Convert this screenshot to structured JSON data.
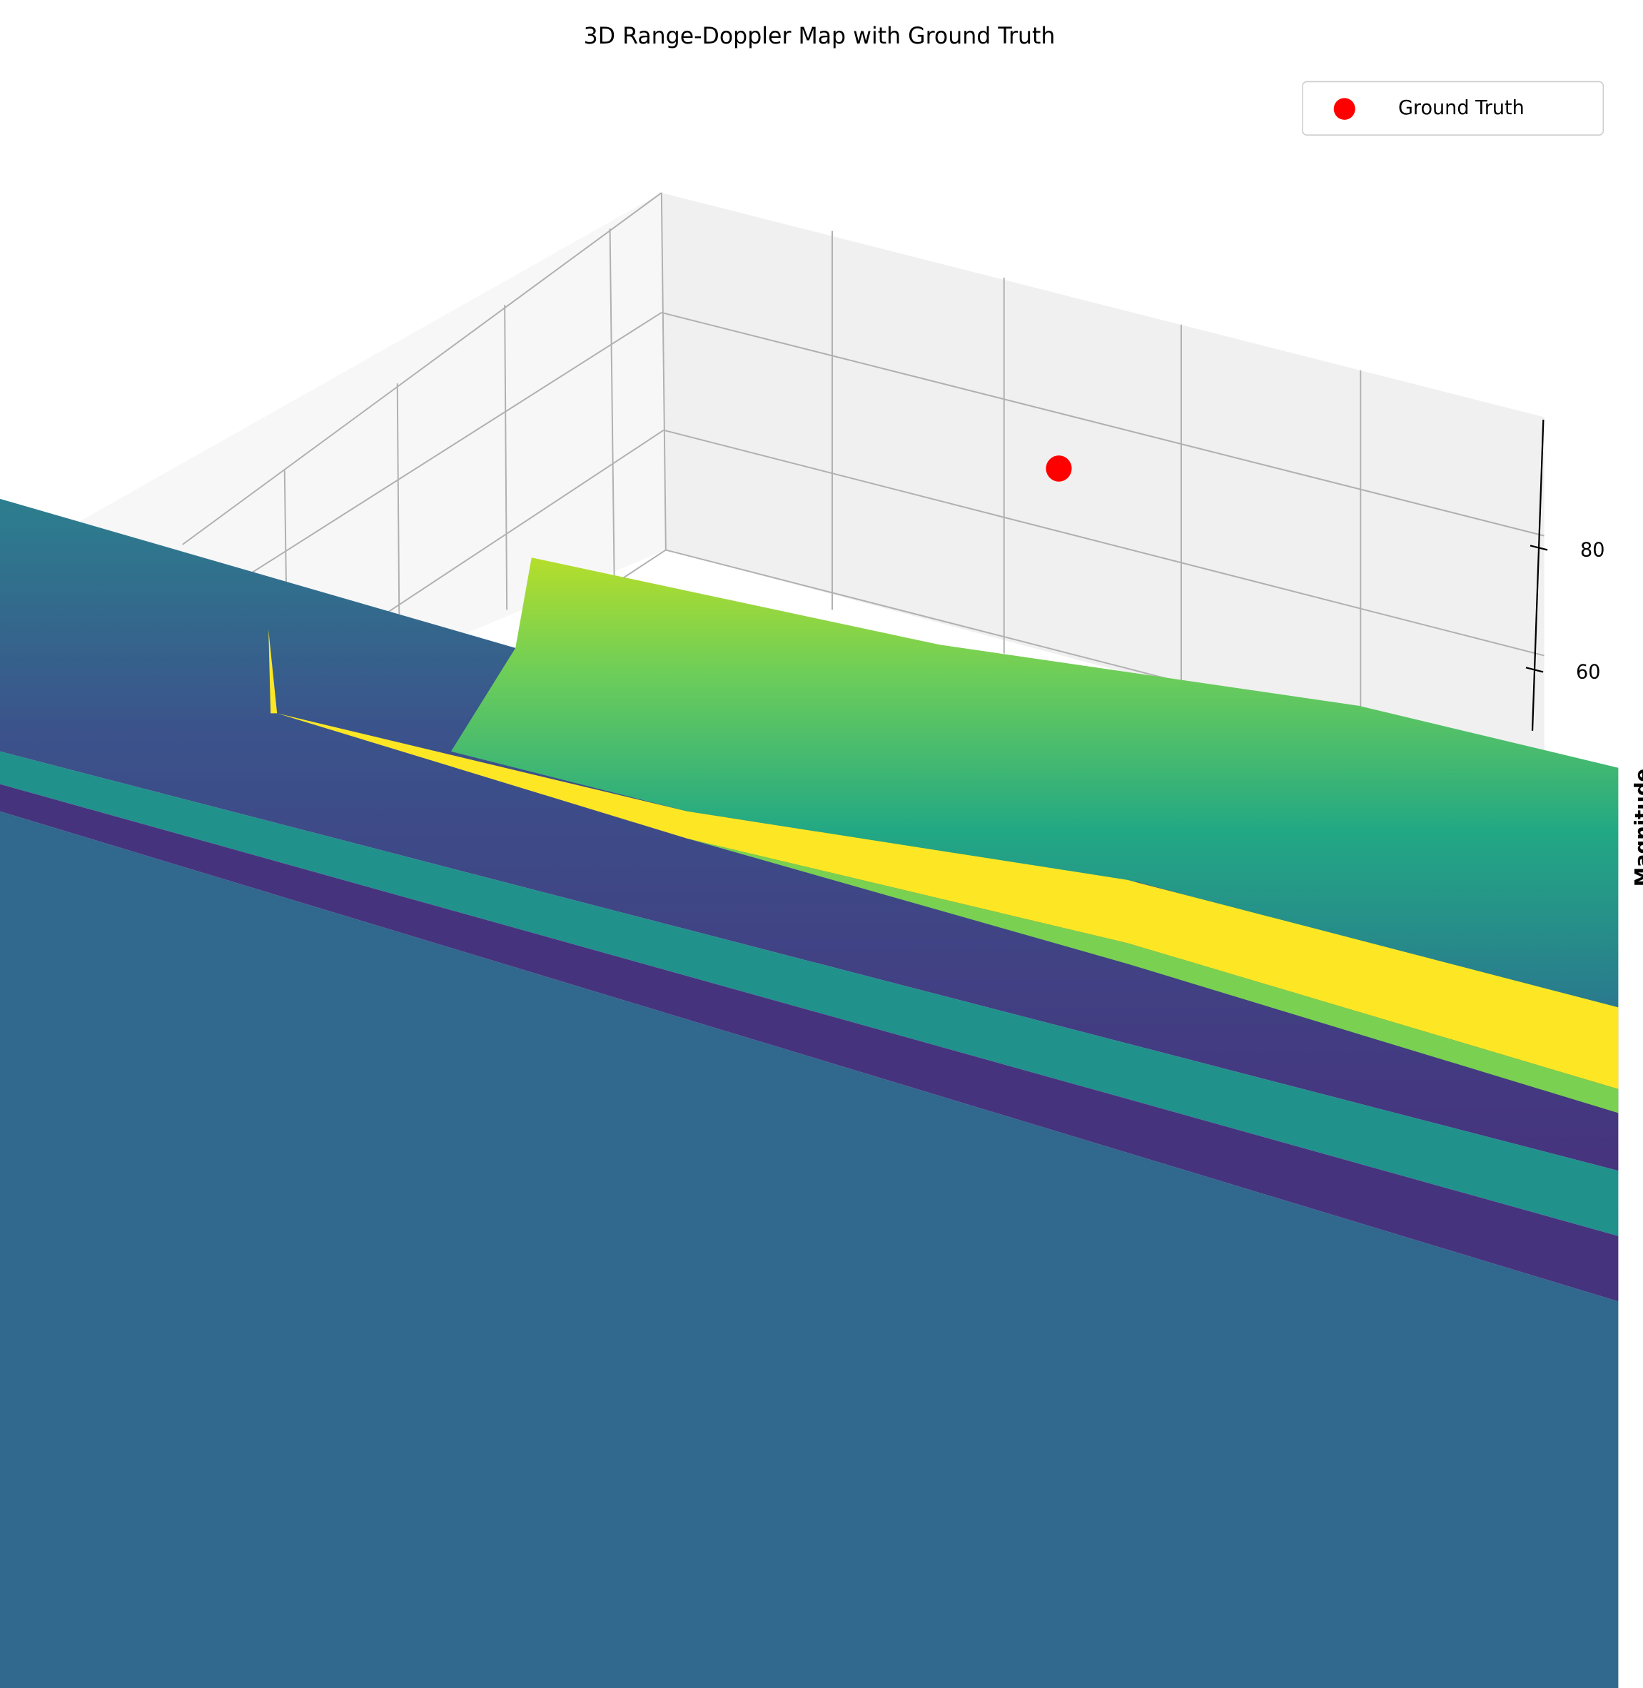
{
  "chart_data": {
    "type": "scatter3d",
    "title": "3D Range-Doppler Map with Ground Truth",
    "zlabel": "Magnitude",
    "zlim": [
      50,
      101
    ],
    "zticks": [
      60,
      80
    ],
    "series": [
      {
        "name": "Ground Truth",
        "color": "#ff0000",
        "z": [
          93
        ]
      }
    ],
    "legend": "upper right"
  }
}
